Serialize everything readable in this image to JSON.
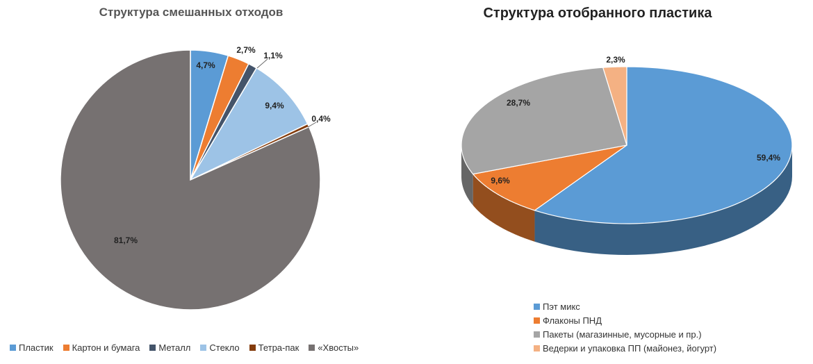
{
  "chart_data": [
    {
      "type": "pie",
      "title": "Структура смешанных отходов",
      "categories": [
        "Пластик",
        "Картон и бумага",
        "Металл",
        "Стекло",
        "Тетра-пак",
        "«Хвосты»"
      ],
      "values": [
        4.7,
        2.7,
        1.1,
        9.4,
        0.4,
        81.7
      ],
      "labels": [
        "4,7%",
        "2,7%",
        "1,1%",
        "9,4%",
        "0,4%",
        "81,7%"
      ],
      "colors": [
        "#5b9bd5",
        "#ed7d31",
        "#44546a",
        "#9dc3e6",
        "#843c0c",
        "#767171"
      ],
      "legend_position": "bottom"
    },
    {
      "type": "pie",
      "title": "Структура отобранного пластика",
      "categories": [
        "Пэт микс",
        "Флаконы ПНД",
        "Пакеты (магазинные, мусорные и пр.)",
        "Ведерки и упаковка ПП (майонез, йогурт)"
      ],
      "values": [
        59.4,
        9.6,
        28.7,
        2.3
      ],
      "labels": [
        "59,4%",
        "9,6%",
        "28,7%",
        "2,3%"
      ],
      "colors": [
        "#5b9bd5",
        "#ed7d31",
        "#a5a5a5",
        "#f4b183"
      ],
      "legend_position": "bottom",
      "style": "3d"
    }
  ]
}
